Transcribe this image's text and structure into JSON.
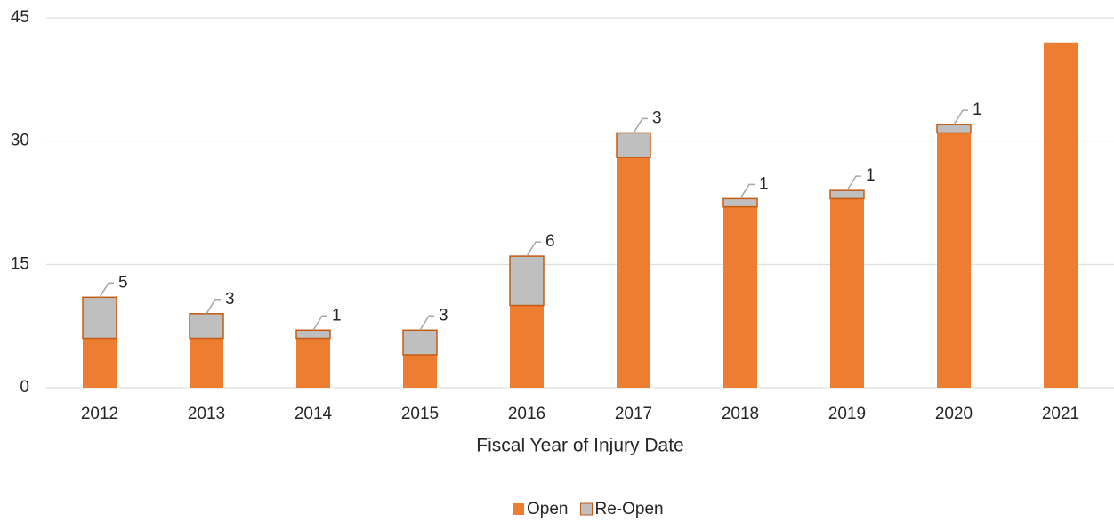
{
  "chart_data": {
    "type": "stacked_bar",
    "x_label": "Fiscal Year of Injury Date",
    "categories": [
      "2012",
      "2013",
      "2014",
      "2015",
      "2016",
      "2017",
      "2018",
      "2019",
      "2020",
      "2021"
    ],
    "series": [
      {
        "name": "Open",
        "color": "#ed7d31",
        "values": [
          6,
          6,
          6,
          4,
          10,
          28,
          22,
          23,
          31,
          42
        ]
      },
      {
        "name": "Re-Open",
        "color": "#bfbfbf",
        "values": [
          5,
          3,
          1,
          3,
          6,
          3,
          1,
          1,
          1,
          null
        ]
      }
    ],
    "ylim": [
      0,
      45
    ],
    "yticks": [
      0,
      15,
      30,
      45
    ],
    "grid": true,
    "legend": "bottom"
  }
}
